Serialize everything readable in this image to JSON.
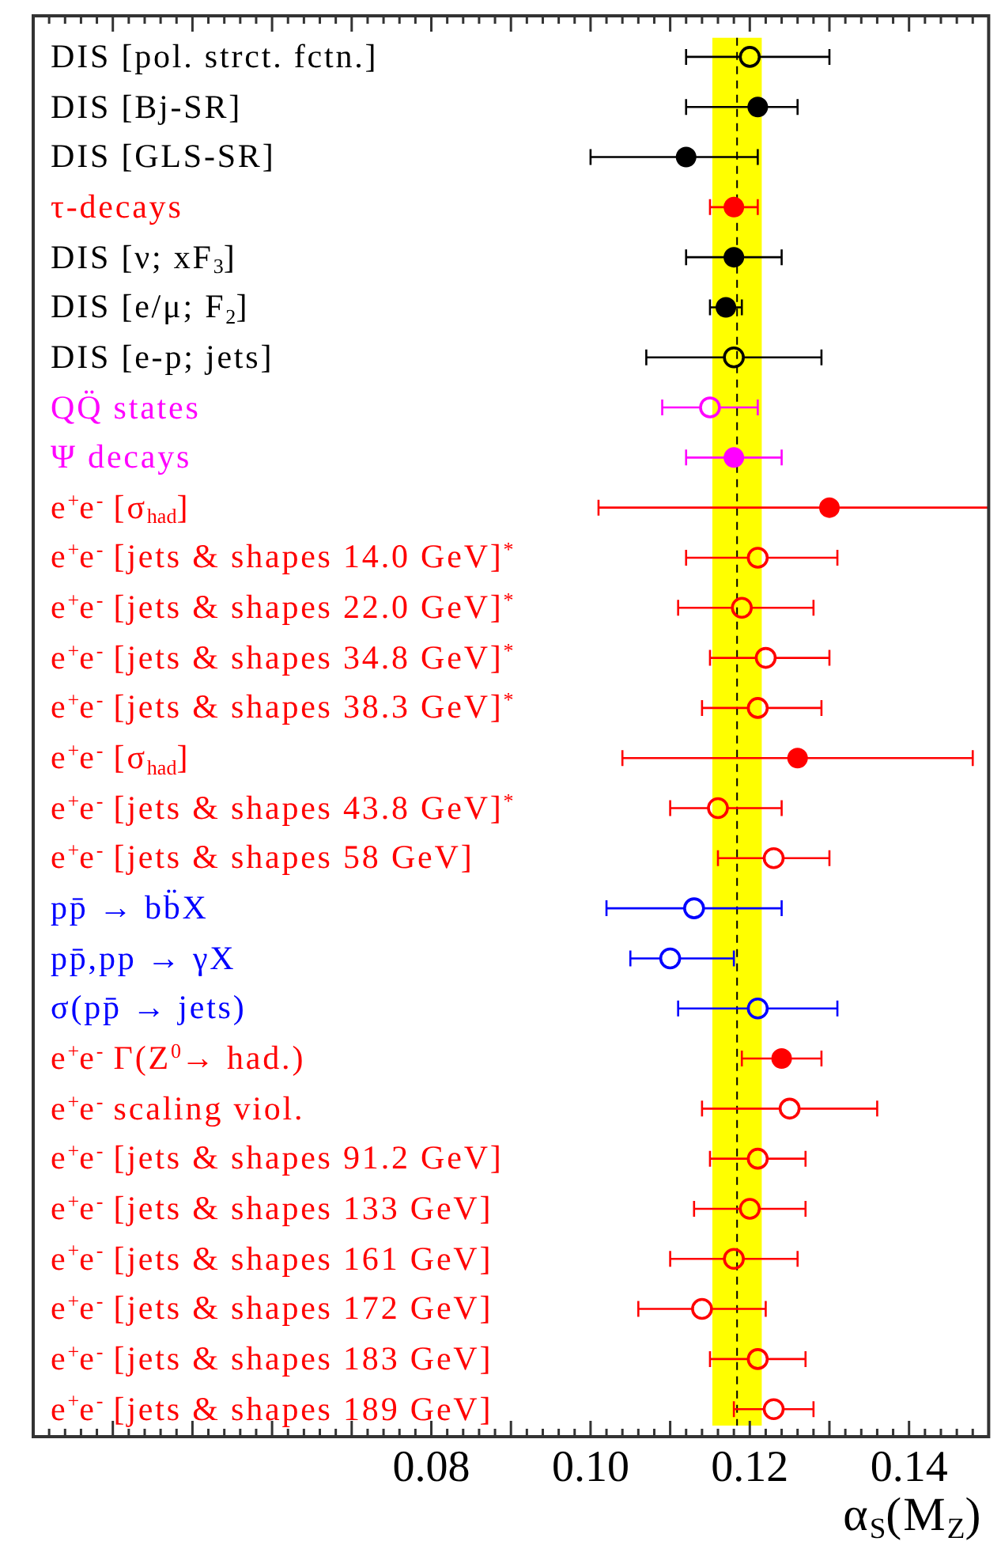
{
  "chart_data": {
    "type": "scatter",
    "orientation": "horizontal",
    "categories": [
      "DIS [pol. strct. fctn.]",
      "DIS [Bj-SR]",
      "DIS [GLS-SR]",
      "τ-decays",
      "DIS [ν; xF$_{3}$]",
      "DIS [e/μ; F$_{2}$]",
      "DIS [e-p; jets]",
      "QQ̈ states",
      "Ψ decays",
      "e$^{+}$e$^{-}$ [σ$_{had}$]",
      "e$^{+}$e$^{-}$ [jets & shapes 14.0 GeV]$^{*}$",
      "e$^{+}$e$^{-}$ [jets & shapes 22.0 GeV]$^{*}$",
      "e$^{+}$e$^{-}$ [jets & shapes 34.8 GeV]$^{*}$",
      "e$^{+}$e$^{-}$ [jets & shapes 38.3 GeV]$^{*}$",
      "e$^{+}$e$^{-}$ [σ$_{had}$]",
      "e$^{+}$e$^{-}$ [jets & shapes 43.8 GeV]$^{*}$",
      "e$^{+}$e$^{-}$ [jets & shapes 58 GeV]",
      "pp̄ → bb̈X",
      "pp̄,pp → γX",
      "σ(pp̄ → jets)",
      "e$^{+}$e$^{-}$ Γ(Z$^{0}$→ had.)",
      "e$^{+}$e$^{-}$ scaling viol.",
      "e$^{+}$e$^{-}$ [jets & shapes 91.2 GeV]",
      "e$^{+}$e$^{-}$ [jets & shapes 133 GeV]",
      "e$^{+}$e$^{-}$ [jets & shapes 161 GeV]",
      "e$^{+}$e$^{-}$ [jets & shapes 172 GeV]",
      "e$^{+}$e$^{-}$ [jets & shapes 183 GeV]",
      "e$^{+}$e$^{-}$ [jets & shapes 189 GeV]"
    ],
    "series": [
      {
        "color": "#000000",
        "marker": "circle-open",
        "values": [
          0.12,
          null,
          null,
          null,
          null,
          null,
          0.118,
          null,
          null,
          null,
          null,
          null,
          null,
          null,
          null,
          null,
          null,
          null,
          null,
          null,
          null,
          null,
          null,
          null,
          null,
          null,
          null,
          null
        ],
        "errors": [
          [
            0.112,
            0.13
          ],
          null,
          null,
          null,
          null,
          null,
          [
            0.107,
            0.129
          ],
          null,
          null,
          null,
          null,
          null,
          null,
          null,
          null,
          null,
          null,
          null,
          null,
          null,
          null,
          null,
          null,
          null,
          null,
          null,
          null,
          null
        ]
      },
      {
        "color": "#000000",
        "marker": "circle",
        "values": [
          null,
          0.121,
          0.112,
          null,
          0.118,
          0.117,
          null,
          null,
          null,
          null,
          null,
          null,
          null,
          null,
          null,
          null,
          null,
          null,
          null,
          null,
          null,
          null,
          null,
          null,
          null,
          null,
          null,
          null
        ],
        "errors": [
          null,
          [
            0.112,
            0.126
          ],
          [
            0.1,
            0.121
          ],
          null,
          [
            0.112,
            0.124
          ],
          [
            0.115,
            0.119
          ],
          null,
          null,
          null,
          null,
          null,
          null,
          null,
          null,
          null,
          null,
          null,
          null,
          null,
          null,
          null,
          null,
          null,
          null,
          null,
          null,
          null,
          null
        ]
      },
      {
        "color": "#ff0000",
        "marker": "circle",
        "values": [
          null,
          null,
          null,
          0.118,
          null,
          null,
          null,
          null,
          null,
          0.13,
          null,
          null,
          null,
          null,
          0.126,
          null,
          null,
          null,
          null,
          null,
          0.124,
          null,
          null,
          null,
          null,
          null,
          null,
          null
        ],
        "errors": [
          null,
          null,
          null,
          [
            0.115,
            0.121
          ],
          null,
          null,
          null,
          null,
          null,
          [
            0.101,
            0.15
          ],
          null,
          null,
          null,
          null,
          [
            0.104,
            0.148
          ],
          null,
          null,
          null,
          null,
          null,
          [
            0.119,
            0.129
          ],
          null,
          null,
          null,
          null,
          null,
          null,
          null
        ]
      },
      {
        "color": "#ff00ff",
        "marker": "circle-open",
        "values": [
          null,
          null,
          null,
          null,
          null,
          null,
          null,
          0.115,
          null,
          null,
          null,
          null,
          null,
          null,
          null,
          null,
          null,
          null,
          null,
          null,
          null,
          null,
          null,
          null,
          null,
          null,
          null,
          null
        ],
        "errors": [
          null,
          null,
          null,
          null,
          null,
          null,
          null,
          [
            0.109,
            0.121
          ],
          null,
          null,
          null,
          null,
          null,
          null,
          null,
          null,
          null,
          null,
          null,
          null,
          null,
          null,
          null,
          null,
          null,
          null,
          null,
          null
        ]
      },
      {
        "color": "#ff00ff",
        "marker": "circle",
        "values": [
          null,
          null,
          null,
          null,
          null,
          null,
          null,
          null,
          0.118,
          null,
          null,
          null,
          null,
          null,
          null,
          null,
          null,
          null,
          null,
          null,
          null,
          null,
          null,
          null,
          null,
          null,
          null,
          null
        ],
        "errors": [
          null,
          null,
          null,
          null,
          null,
          null,
          null,
          null,
          [
            0.112,
            0.124
          ],
          null,
          null,
          null,
          null,
          null,
          null,
          null,
          null,
          null,
          null,
          null,
          null,
          null,
          null,
          null,
          null,
          null,
          null,
          null
        ]
      },
      {
        "color": "#ff0000",
        "marker": "circle-open",
        "values": [
          null,
          null,
          null,
          null,
          null,
          null,
          null,
          null,
          null,
          null,
          0.121,
          0.119,
          0.122,
          0.121,
          null,
          0.116,
          0.123,
          null,
          null,
          null,
          null,
          0.125,
          0.121,
          0.12,
          0.118,
          0.114,
          0.121,
          0.123
        ],
        "errors": [
          null,
          null,
          null,
          null,
          null,
          null,
          null,
          null,
          null,
          null,
          [
            0.112,
            0.131
          ],
          [
            0.111,
            0.128
          ],
          [
            0.115,
            0.13
          ],
          [
            0.114,
            0.129
          ],
          null,
          [
            0.11,
            0.124
          ],
          [
            0.116,
            0.13
          ],
          null,
          null,
          null,
          null,
          [
            0.114,
            0.136
          ],
          [
            0.115,
            0.127
          ],
          [
            0.113,
            0.127
          ],
          [
            0.11,
            0.126
          ],
          [
            0.106,
            0.122
          ],
          [
            0.115,
            0.127
          ],
          [
            0.118,
            0.128
          ]
        ]
      },
      {
        "color": "#0000ff",
        "marker": "circle-open",
        "values": [
          null,
          null,
          null,
          null,
          null,
          null,
          null,
          null,
          null,
          null,
          null,
          null,
          null,
          null,
          null,
          null,
          null,
          0.113,
          0.11,
          0.121,
          null,
          null,
          null,
          null,
          null,
          null,
          null,
          null
        ],
        "errors": [
          null,
          null,
          null,
          null,
          null,
          null,
          null,
          null,
          null,
          null,
          null,
          null,
          null,
          null,
          null,
          null,
          null,
          [
            0.102,
            0.124
          ],
          [
            0.105,
            0.118
          ],
          [
            0.111,
            0.131
          ],
          null,
          null,
          null,
          null,
          null,
          null,
          null,
          null
        ]
      }
    ],
    "xlabel": "α$_{S}$(M$_{Z}$)",
    "xlim": [
      0.03,
      0.15
    ],
    "xticks": [
      {
        "value": 0.032,
        "label": null
      },
      {
        "value": 0.034,
        "label": null
      },
      {
        "value": 0.036,
        "label": null
      },
      {
        "value": 0.038,
        "label": null
      },
      {
        "value": 0.04,
        "label": null
      },
      {
        "value": 0.042,
        "label": null
      },
      {
        "value": 0.044,
        "label": null
      },
      {
        "value": 0.046,
        "label": null
      },
      {
        "value": 0.048,
        "label": null
      },
      {
        "value": 0.05,
        "label": null
      },
      {
        "value": 0.052,
        "label": null
      },
      {
        "value": 0.054,
        "label": null
      },
      {
        "value": 0.056,
        "label": null
      },
      {
        "value": 0.058,
        "label": null
      },
      {
        "value": 0.06,
        "label": null
      },
      {
        "value": 0.062,
        "label": null
      },
      {
        "value": 0.064,
        "label": null
      },
      {
        "value": 0.066,
        "label": null
      },
      {
        "value": 0.068,
        "label": null
      },
      {
        "value": 0.07,
        "label": null
      },
      {
        "value": 0.072,
        "label": null
      },
      {
        "value": 0.074,
        "label": null
      },
      {
        "value": 0.076,
        "label": null
      },
      {
        "value": 0.078,
        "label": null
      },
      0.08,
      {
        "value": 0.082,
        "label": null
      },
      {
        "value": 0.084,
        "label": null
      },
      {
        "value": 0.086,
        "label": null
      },
      {
        "value": 0.088,
        "label": null
      },
      {
        "value": 0.09,
        "label": null
      },
      {
        "value": 0.092,
        "label": null
      },
      {
        "value": 0.094,
        "label": null
      },
      {
        "value": 0.096,
        "label": null
      },
      {
        "value": 0.098,
        "label": null
      },
      {
        "value": 0.1,
        "label": "0.10"
      },
      {
        "value": 0.102,
        "label": null
      },
      {
        "value": 0.104,
        "label": null
      },
      {
        "value": 0.106,
        "label": null
      },
      {
        "value": 0.108,
        "label": null
      },
      {
        "value": 0.11,
        "label": null
      },
      {
        "value": 0.112,
        "label": null
      },
      {
        "value": 0.114,
        "label": null
      },
      {
        "value": 0.116,
        "label": null
      },
      {
        "value": 0.118,
        "label": null
      },
      0.12,
      {
        "value": 0.122,
        "label": null
      },
      {
        "value": 0.124,
        "label": null
      },
      {
        "value": 0.126,
        "label": null
      },
      {
        "value": 0.128,
        "label": null
      },
      {
        "value": 0.13,
        "label": null
      },
      {
        "value": 0.132,
        "label": null
      },
      {
        "value": 0.134,
        "label": null
      },
      {
        "value": 0.136,
        "label": null
      },
      {
        "value": 0.138,
        "label": null
      },
      0.14,
      {
        "value": 0.142,
        "label": null
      },
      {
        "value": 0.144,
        "label": null
      },
      {
        "value": 0.146,
        "label": null
      },
      {
        "value": 0.148,
        "label": null
      }
    ],
    "bands": [
      {
        "axis": "x",
        "from": 0.1153,
        "to": 0.1215,
        "color": "#ffff00"
      }
    ],
    "ref_lines": [
      {
        "axis": "x",
        "value": 0.1184,
        "color": "#000000",
        "line_style": "dashed"
      }
    ],
    "legend": false
  }
}
